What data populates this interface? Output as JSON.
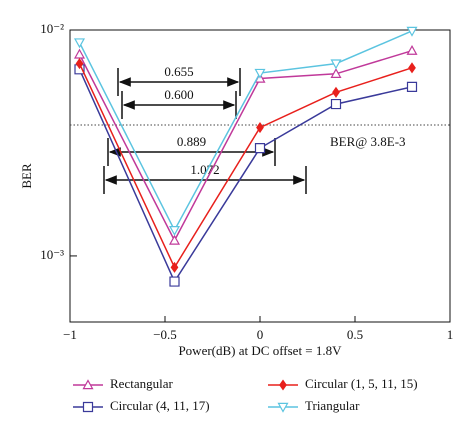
{
  "chart_data": {
    "type": "line",
    "ylabel": "BER",
    "xlabel": "Power(dB) at DC offset = 1.8V",
    "log_y": true,
    "x": [
      -0.95,
      -0.45,
      0,
      0.4,
      0.8
    ],
    "xlim": [
      -1,
      1
    ],
    "xticks": [
      {
        "value": -1,
        "label": "−1"
      },
      {
        "value": -0.5,
        "label": "−0.5"
      },
      0,
      0.5,
      1
    ],
    "ylim": [
      0.00051,
      0.01
    ],
    "yticks": [
      {
        "value": 0.001,
        "label": "10⁻³"
      },
      {
        "value": 0.01,
        "label": "10⁻²"
      }
    ],
    "series": [
      {
        "name": "Rectangular",
        "color": "#c0399a",
        "marker": "triangle-up",
        "values": [
          0.0078,
          0.00117,
          0.0061,
          0.0064,
          0.0081
        ]
      },
      {
        "name": "Circular (4, 11, 17)",
        "color": "#3a3a9a",
        "marker": "square",
        "values": [
          0.0067,
          0.00077,
          0.003,
          0.0047,
          0.0056
        ]
      },
      {
        "name": "Circular (1, 5, 11, 15)",
        "color": "#e8201c",
        "marker": "filled-diamond",
        "values": [
          0.0071,
          0.00089,
          0.0037,
          0.0053,
          0.0068
        ]
      },
      {
        "name": "Triangular",
        "color": "#5bc4e0",
        "marker": "triangle-down",
        "values": [
          0.0088,
          0.0013,
          0.00645,
          0.0071,
          0.0099
        ]
      }
    ],
    "threshold": 0.0038,
    "threshold_label": "BER@ 3.8E-3",
    "annotations": [
      "0.655",
      "0.600",
      "0.889",
      "1.072"
    ]
  }
}
